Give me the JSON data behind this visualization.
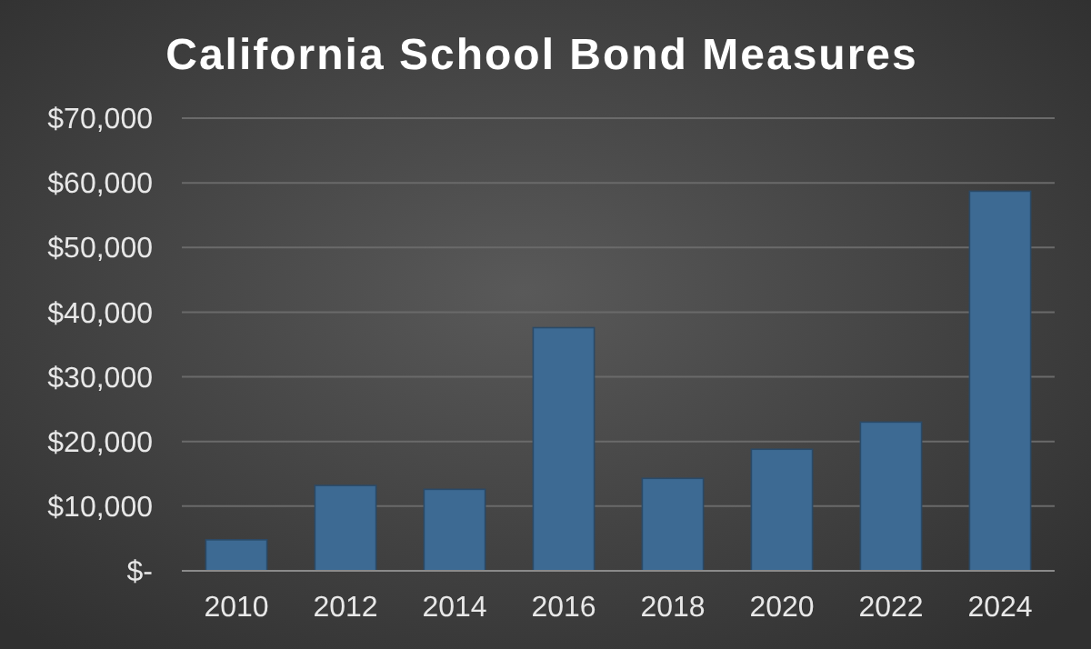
{
  "chart_data": {
    "type": "bar",
    "title": "California School Bond Measures",
    "categories": [
      "2010",
      "2012",
      "2014",
      "2016",
      "2018",
      "2020",
      "2022",
      "2024"
    ],
    "values": [
      4800,
      13200,
      12600,
      37600,
      14300,
      18800,
      23000,
      58700
    ],
    "color": "#3d6a93",
    "ylim": [
      0,
      70000
    ],
    "yticks": [
      {
        "value": 0,
        "label": "$-"
      },
      {
        "value": 10000,
        "label": "$10,000"
      },
      {
        "value": 20000,
        "label": "$20,000"
      },
      {
        "value": 30000,
        "label": "$30,000"
      },
      {
        "value": 40000,
        "label": "$40,000"
      },
      {
        "value": 50000,
        "label": "$50,000"
      },
      {
        "value": 60000,
        "label": "$60,000"
      },
      {
        "value": 70000,
        "label": "$70,000"
      }
    ],
    "grid": "y"
  }
}
